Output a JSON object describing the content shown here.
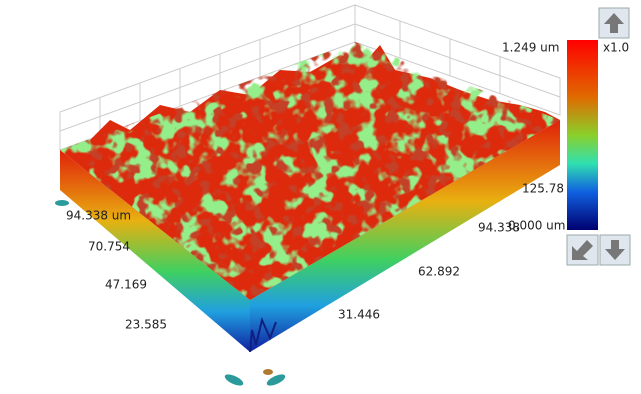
{
  "colorbar": {
    "max_label": "1.249 um",
    "min_label": "0.000 um",
    "scale_label": "x1.0"
  },
  "axes": {
    "y_labels": [
      "94.338 um",
      "70.754",
      "47.169",
      "23.585"
    ],
    "x_labels": [
      "31.446",
      "62.892",
      "94.338",
      "125.78 um"
    ]
  }
}
